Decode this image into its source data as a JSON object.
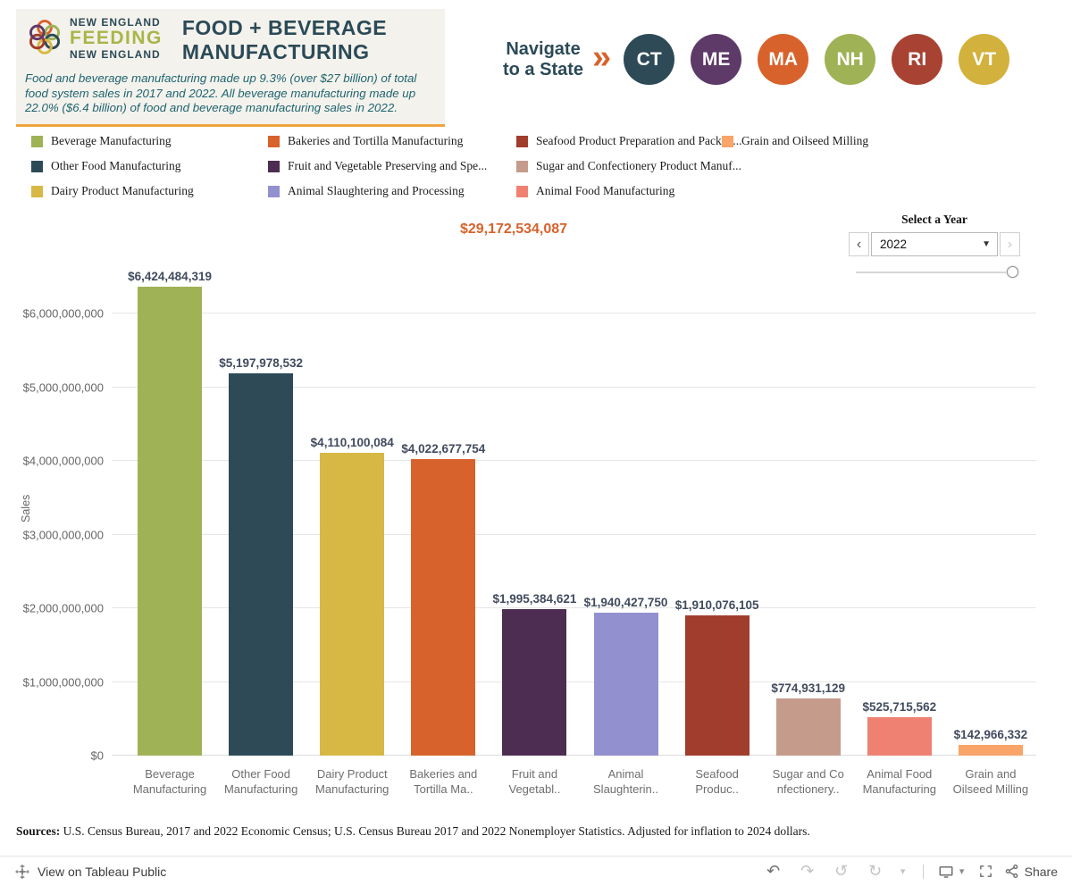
{
  "header": {
    "logo": {
      "top_line": "NEW ENGLAND",
      "middle_line": "FEEDING",
      "bottom_line": "NEW ENGLAND"
    },
    "title_line1": "FOOD + BEVERAGE",
    "title_line2": "MANUFACTURING",
    "description": "Food and beverage manufacturing made up 9.3% (over $27 billion) of total food system sales in 2017 and 2022. All beverage manufacturing made up 22.0% ($6.4 billion) of food and beverage manufacturing sales in 2022.",
    "navigate": {
      "label_line1": "Navigate",
      "label_line2": "to a State",
      "chevron": "»",
      "states": [
        {
          "code": "CT",
          "color": "#2d4a56"
        },
        {
          "code": "ME",
          "color": "#5e3a68"
        },
        {
          "code": "MA",
          "color": "#d8622c"
        },
        {
          "code": "NH",
          "color": "#9fb256"
        },
        {
          "code": "RI",
          "color": "#a84232"
        },
        {
          "code": "VT",
          "color": "#d2b13c"
        }
      ]
    }
  },
  "legend": {
    "columns": [
      [
        {
          "label": "Beverage Manufacturing",
          "color": "#9fb256"
        },
        {
          "label": "Other Food Manufacturing",
          "color": "#2d4a56"
        },
        {
          "label": "Dairy Product Manufacturing",
          "color": "#d7b844"
        }
      ],
      [
        {
          "label": "Bakeries and Tortilla Manufacturing",
          "color": "#d8622c"
        },
        {
          "label": "Fruit and Vegetable Preserving and Spe...",
          "color": "#4e2d52"
        },
        {
          "label": "Animal Slaughtering and Processing",
          "color": "#9390d0"
        }
      ],
      [
        {
          "label": "Seafood Product Preparation and Packag...",
          "color": "#a13d2d"
        },
        {
          "label": "Sugar and Confectionery Product Manuf...",
          "color": "#c59b8c"
        },
        {
          "label": "Animal Food Manufacturing",
          "color": "#ef8172"
        }
      ],
      [
        {
          "label": "Grain and Oilseed Milling",
          "color": "#f9a468"
        }
      ]
    ]
  },
  "year_selector": {
    "title": "Select a Year",
    "value": "2022",
    "prev_glyph": "‹",
    "next_glyph": "›",
    "caret": "▼"
  },
  "chart_data": {
    "type": "bar",
    "title": "$29,172,534,087",
    "ylabel": "Sales",
    "ylim": [
      0,
      6600000000
    ],
    "grid": true,
    "legend_position": "top",
    "yticks": [
      0,
      1000000000,
      2000000000,
      3000000000,
      4000000000,
      5000000000,
      6000000000
    ],
    "ytick_labels": [
      "$0",
      "$1,000,000,000",
      "$2,000,000,000",
      "$3,000,000,000",
      "$4,000,000,000",
      "$5,000,000,000",
      "$6,000,000,000"
    ],
    "categories": [
      "Beverage Manufacturing",
      "Other Food Manufacturing",
      "Dairy Product Manufacturing",
      "Bakeries and Tortilla Ma..",
      "Fruit and Vegetabl..",
      "Animal Slaughterin..",
      "Seafood Produc..",
      "Sugar and Confectionery..",
      "Animal Food Manufacturing",
      "Grain and Oilseed Milling"
    ],
    "category_labels": [
      [
        "Beverage",
        "Manufacturing"
      ],
      [
        "Other Food",
        "Manufacturing"
      ],
      [
        "Dairy Product",
        "Manufacturing"
      ],
      [
        "Bakeries and",
        "Tortilla Ma.."
      ],
      [
        "Fruit and",
        "Vegetabl.."
      ],
      [
        "Animal",
        "Slaughterin.."
      ],
      [
        "Seafood",
        "Produc.."
      ],
      [
        "Sugar and Co",
        "nfectionery.."
      ],
      [
        "Animal Food",
        "Manufacturing"
      ],
      [
        "Grain and",
        "Oilseed Milling"
      ]
    ],
    "values": [
      6424484319,
      5197978532,
      4110100084,
      4022677754,
      1995384621,
      1940427750,
      1910076105,
      774931129,
      525715562,
      142966332
    ],
    "value_labels": [
      "$6,424,484,319",
      "$5,197,978,532",
      "$4,110,100,084",
      "$4,022,677,754",
      "$1,995,384,621",
      "$1,940,427,750",
      "$1,910,076,105",
      "$774,931,129",
      "$525,715,562",
      "$142,966,332"
    ],
    "colors": [
      "#9fb256",
      "#2d4a56",
      "#d7b844",
      "#d8622c",
      "#4e2d52",
      "#9390d0",
      "#a13d2d",
      "#c59b8c",
      "#ef8172",
      "#f9a468"
    ]
  },
  "sources": {
    "label": "Sources:",
    "text": " U.S. Census Bureau, 2017 and 2022 Economic Census; U.S. Census Bureau 2017 and 2022 Nonemployer Statistics. Adjusted for inflation to 2024 dollars."
  },
  "footer": {
    "view_label": "View on Tableau Public",
    "share_label": "Share",
    "caret_glyph": "▾",
    "toolbar_icons": [
      {
        "name": "undo-button",
        "glyph": "↶",
        "enabled": true
      },
      {
        "name": "redo-button",
        "glyph": "↷",
        "enabled": false
      },
      {
        "name": "replay-button",
        "glyph": "↺",
        "enabled": false
      },
      {
        "name": "refresh-button",
        "glyph": "↻",
        "enabled": false
      },
      {
        "name": "toolbar-caret-icon",
        "glyph": "▾",
        "enabled": false
      }
    ]
  }
}
